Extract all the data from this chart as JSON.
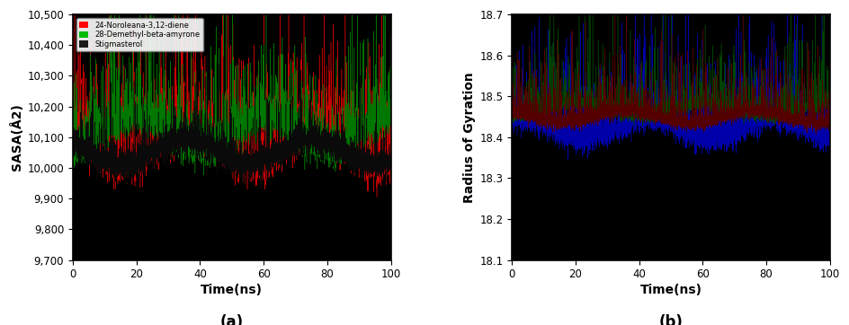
{
  "panel_a": {
    "title": "(a)",
    "xlabel": "Time(ns)",
    "ylabel": "SASA(Å2)",
    "xlim": [
      0,
      100
    ],
    "ylim": [
      9700,
      10500
    ],
    "yticks": [
      9700,
      9800,
      9900,
      10000,
      10100,
      10200,
      10300,
      10400,
      10500
    ],
    "xticks": [
      0,
      20,
      40,
      60,
      80,
      100
    ],
    "bg_color": "#000000",
    "legend_loc": "upper left",
    "legend_labels": [
      "24-Noroleana-3,12-diene",
      "28-Demethyl-beta-amyrone",
      "Stigmasterol"
    ],
    "legend_colors": [
      "#ff0000",
      "#00bb00",
      "#1a1a1a"
    ],
    "series": [
      {
        "color": "#cc0000",
        "base": 10080,
        "noise_scale": 120,
        "spike_prob": 0.18,
        "spike_scale": 200,
        "seed": 42
      },
      {
        "color": "#007700",
        "base": 10120,
        "noise_scale": 100,
        "spike_prob": 0.15,
        "spike_scale": 180,
        "seed": 7
      },
      {
        "color": "#0a0a0a",
        "base": 10050,
        "noise_scale": 80,
        "spike_prob": 0.1,
        "spike_scale": 150,
        "seed": 13
      }
    ]
  },
  "panel_b": {
    "title": "(b)",
    "xlabel": "Time(ns)",
    "ylabel": "Radius of Gyration",
    "xlim": [
      0,
      100
    ],
    "ylim": [
      18.1,
      18.7
    ],
    "yticks": [
      18.1,
      18.2,
      18.3,
      18.4,
      18.5,
      18.6,
      18.7
    ],
    "xticks": [
      0,
      20,
      40,
      60,
      80,
      100
    ],
    "bg_color": "#000000",
    "series_blue": {
      "color": "#0000aa",
      "base": 18.42,
      "noise_scale": 0.05,
      "spike_prob": 0.2,
      "spike_scale": 0.13,
      "seed": 99
    },
    "series_green": {
      "color": "#004400",
      "base": 18.47,
      "noise_scale": 0.03,
      "spike_prob": 0.15,
      "spike_scale": 0.1,
      "seed": 7
    },
    "series_red": {
      "color": "#550000",
      "base": 18.45,
      "noise_scale": 0.03,
      "spike_prob": 0.12,
      "spike_scale": 0.1,
      "seed": 42
    }
  }
}
